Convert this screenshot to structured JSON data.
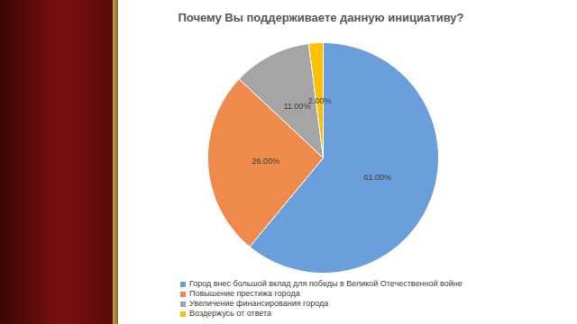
{
  "chart_data": {
    "type": "pie",
    "title": "Почему Вы поддерживаете данную инициативу?",
    "categories": [
      "Город внес большой вклад для победы в Великой Отечественной войне",
      "Повышение престижа города",
      "Увеличение финансирования города",
      "Воздержусь от ответа"
    ],
    "values": [
      61,
      26,
      11,
      2
    ],
    "value_labels": [
      "61.00%",
      "26.00%",
      "11.00%",
      "2.00%"
    ],
    "colors": [
      "#6a9fdc",
      "#ef8a4c",
      "#a5a5a5",
      "#ffc000"
    ],
    "data_labels": true,
    "legend": "bottom"
  }
}
